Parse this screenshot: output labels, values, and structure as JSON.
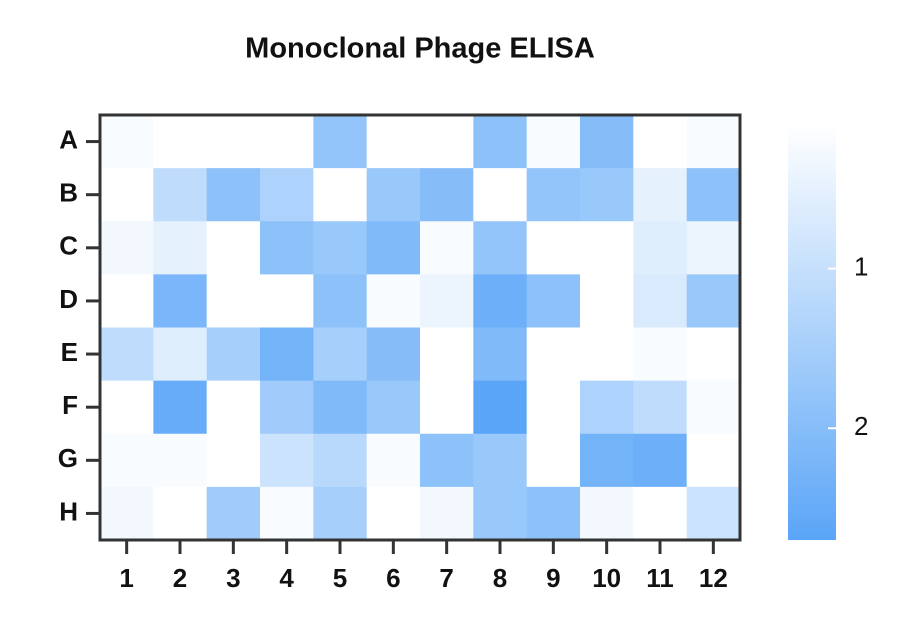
{
  "chart_data": {
    "type": "heatmap",
    "title": "Monoclonal Phage ELISA",
    "x_categories": [
      "1",
      "2",
      "3",
      "4",
      "5",
      "6",
      "7",
      "8",
      "9",
      "10",
      "11",
      "12"
    ],
    "y_categories": [
      "A",
      "B",
      "C",
      "D",
      "E",
      "F",
      "G",
      "H"
    ],
    "values": [
      [
        0.2,
        0.1,
        0.1,
        0.1,
        1.8,
        0.1,
        0.1,
        1.9,
        0.2,
        2.0,
        0.1,
        0.2
      ],
      [
        0.1,
        1.1,
        1.9,
        1.4,
        0.1,
        1.7,
        2.0,
        0.1,
        1.8,
        1.7,
        0.5,
        1.9
      ],
      [
        0.3,
        0.5,
        0.1,
        1.9,
        1.7,
        2.1,
        0.2,
        1.8,
        0.1,
        0.1,
        0.6,
        0.4
      ],
      [
        0.1,
        2.2,
        0.1,
        0.1,
        1.9,
        0.2,
        0.4,
        2.4,
        1.9,
        0.1,
        0.7,
        1.7
      ],
      [
        1.1,
        0.6,
        1.5,
        2.3,
        1.5,
        2.0,
        0.1,
        2.1,
        0.1,
        0.1,
        0.2,
        0.1
      ],
      [
        0.1,
        2.5,
        0.1,
        1.6,
        2.1,
        1.7,
        0.1,
        2.7,
        0.1,
        1.4,
        1.1,
        0.2
      ],
      [
        0.2,
        0.2,
        0.1,
        0.9,
        1.2,
        0.2,
        1.9,
        1.7,
        0.1,
        2.3,
        2.4,
        0.1
      ],
      [
        0.3,
        0.1,
        1.6,
        0.2,
        1.5,
        0.1,
        0.3,
        1.7,
        1.9,
        0.3,
        0.1,
        0.9
      ]
    ],
    "colormap": [
      "#ffffff",
      "#5aa5f7"
    ],
    "clim": [
      0.1,
      2.7
    ],
    "cticks": [
      1,
      2
    ]
  }
}
